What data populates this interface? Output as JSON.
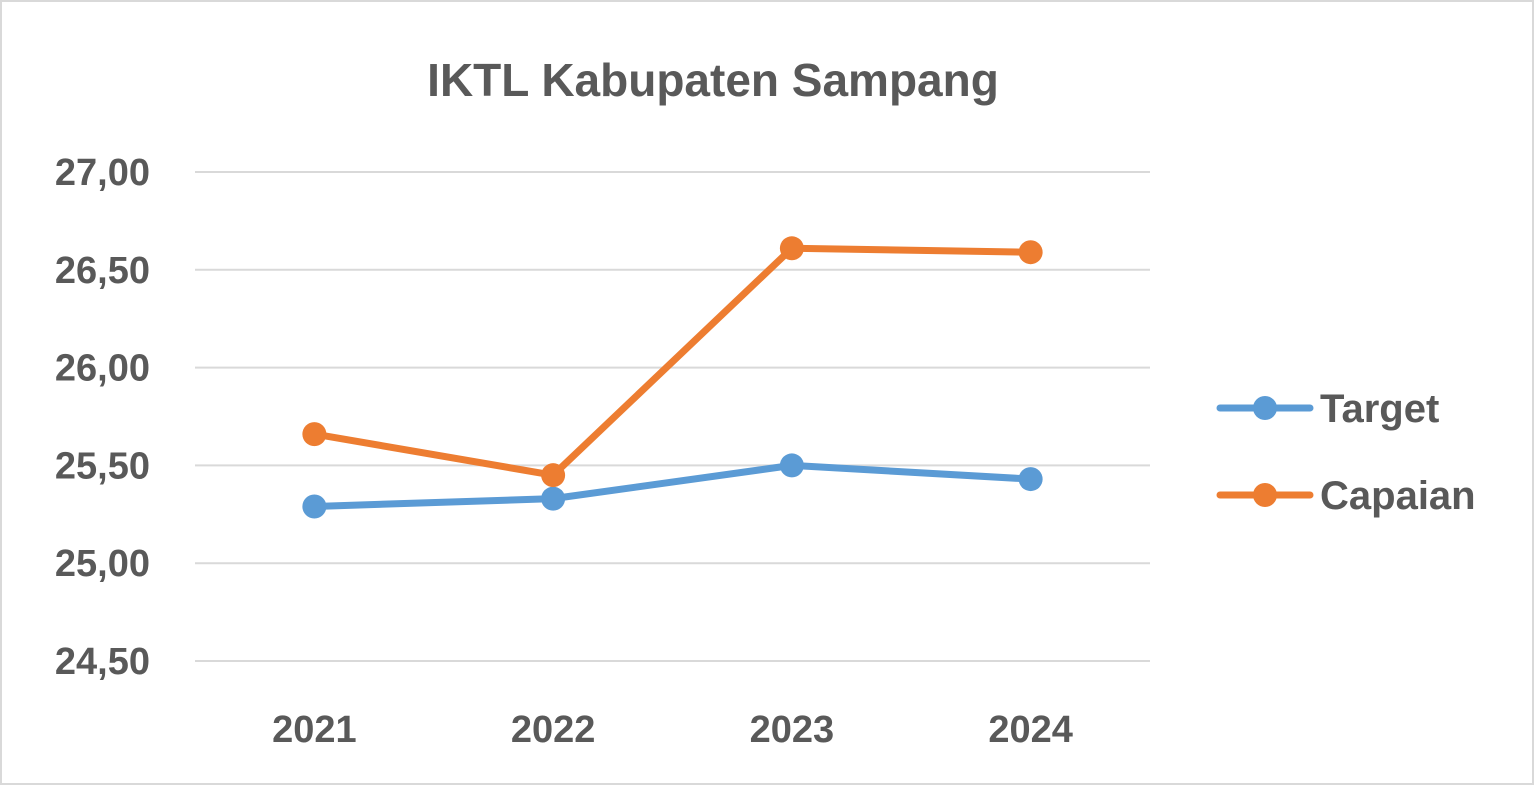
{
  "chart_data": {
    "type": "line",
    "title": "IKTL Kabupaten Sampang",
    "xlabel": "",
    "ylabel": "",
    "categories": [
      "2021",
      "2022",
      "2023",
      "2024"
    ],
    "ylim": [
      24.5,
      27.0
    ],
    "yticks": [
      24.5,
      25.0,
      25.5,
      26.0,
      26.5,
      27.0
    ],
    "ytick_labels": [
      "24,50",
      "25,00",
      "25,50",
      "26,00",
      "26,50",
      "27,00"
    ],
    "grid": true,
    "legend_position": "right",
    "series": [
      {
        "name": "Target",
        "color": "#5b9bd5",
        "values": [
          25.29,
          25.33,
          25.5,
          25.43
        ]
      },
      {
        "name": "Capaian",
        "color": "#ed7d31",
        "values": [
          25.66,
          25.45,
          26.61,
          26.59
        ]
      }
    ]
  }
}
